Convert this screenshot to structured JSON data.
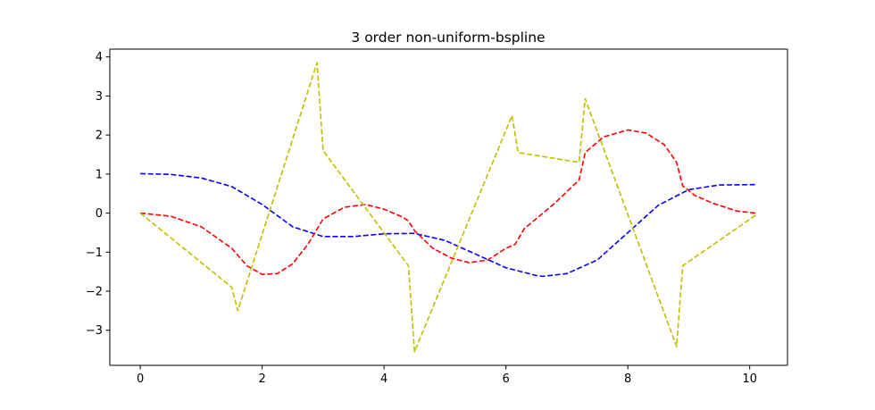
{
  "chart_data": {
    "type": "line",
    "title": "3 order non-uniform-bspline",
    "xlabel": "",
    "ylabel": "",
    "xlim": [
      -0.5,
      10.62
    ],
    "ylim": [
      -3.9,
      4.2
    ],
    "xticks": [
      0,
      2,
      4,
      6,
      8,
      10
    ],
    "yticks": [
      -3,
      -2,
      -1,
      0,
      1,
      2,
      3,
      4
    ],
    "xtick_labels": [
      "0",
      "2",
      "4",
      "6",
      "8",
      "10"
    ],
    "ytick_labels": [
      "−3",
      "−2",
      "−1",
      "0",
      "1",
      "2",
      "3",
      "4"
    ],
    "grid": false,
    "series": [
      {
        "color": "#0000ff",
        "line_style": "dashed",
        "x": [
          0,
          0.5,
          1.0,
          1.5,
          2.0,
          2.5,
          3.0,
          3.5,
          4.0,
          4.5,
          5.0,
          5.5,
          6.0,
          6.5,
          6.6,
          7.0,
          7.5,
          8.0,
          8.5,
          9.0,
          9.5,
          10.1
        ],
        "y": [
          1.01,
          0.99,
          0.9,
          0.68,
          0.22,
          -0.35,
          -0.6,
          -0.6,
          -0.53,
          -0.52,
          -0.7,
          -1.05,
          -1.4,
          -1.6,
          -1.62,
          -1.55,
          -1.2,
          -0.5,
          0.2,
          0.6,
          0.72,
          0.73
        ]
      },
      {
        "color": "#ff0000",
        "line_style": "dashed",
        "x": [
          0,
          0.5,
          1.0,
          1.5,
          1.75,
          2.0,
          2.25,
          2.5,
          2.75,
          3.0,
          3.35,
          3.7,
          4.0,
          4.3,
          4.4,
          4.5,
          4.8,
          5.1,
          5.4,
          5.7,
          6.0,
          6.15,
          6.3,
          6.8,
          7.2,
          7.3,
          7.6,
          8.0,
          8.3,
          8.6,
          8.8,
          8.9,
          9.1,
          9.4,
          9.8,
          10.1
        ],
        "y": [
          0.0,
          -0.08,
          -0.35,
          -0.9,
          -1.35,
          -1.57,
          -1.55,
          -1.3,
          -0.8,
          -0.15,
          0.15,
          0.22,
          0.1,
          -0.1,
          -0.2,
          -0.45,
          -0.9,
          -1.15,
          -1.27,
          -1.2,
          -0.9,
          -0.8,
          -0.4,
          0.25,
          0.85,
          1.55,
          1.95,
          2.13,
          2.05,
          1.75,
          1.3,
          0.7,
          0.45,
          0.25,
          0.05,
          0.0
        ]
      },
      {
        "color": "#bfbf00",
        "line_style": "dashed",
        "x": [
          0,
          1.5,
          1.6,
          2.9,
          3.0,
          4.4,
          4.5,
          6.1,
          6.2,
          7.2,
          7.3,
          8.8,
          8.9,
          10.1
        ],
        "y": [
          0.0,
          -1.9,
          -2.5,
          3.85,
          1.6,
          -1.35,
          -3.55,
          2.5,
          1.55,
          1.3,
          2.93,
          -3.42,
          -1.35,
          -0.05
        ]
      }
    ]
  }
}
